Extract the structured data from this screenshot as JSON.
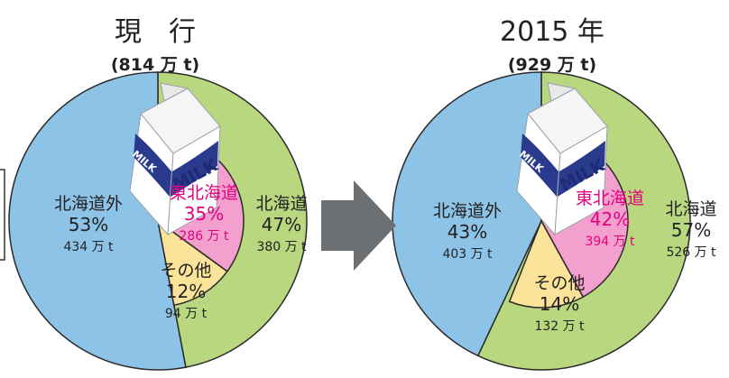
{
  "chart_data": [
    {
      "type": "pie",
      "title": "現　行",
      "total": "(814 万 t)",
      "colors": {
        "outer_inside": "#8ec3e8",
        "outer_hokkaido": "#b9d77f",
        "inner_tohoku": "#f3a0cf",
        "inner_other": "#fbe39a"
      },
      "outer": [
        {
          "name": "北海道外",
          "percent": 53,
          "amount": 434,
          "pct_label": "53%",
          "amt_label": "434 万 t"
        },
        {
          "name": "北海道",
          "percent": 47,
          "amount": 380,
          "pct_label": "47%",
          "amt_label": "380 万 t"
        }
      ],
      "inner": [
        {
          "name": "東北海道",
          "percent": 35,
          "amount": 286,
          "pct_label": "35%",
          "amt_label": "286 万 t"
        },
        {
          "name": "その他",
          "percent": 12,
          "amount": 94,
          "pct_label": "12%",
          "amt_label": "94 万 t"
        }
      ]
    },
    {
      "type": "pie",
      "title": "2015 年",
      "total": "(929 万 t)",
      "colors": {
        "outer_inside": "#8ec3e8",
        "outer_hokkaido": "#b9d77f",
        "inner_tohoku": "#f3a0cf",
        "inner_other": "#fbe39a"
      },
      "outer": [
        {
          "name": "北海道外",
          "percent": 43,
          "amount": 403,
          "pct_label": "43%",
          "amt_label": "403 万 t"
        },
        {
          "name": "北海道",
          "percent": 57,
          "amount": 526,
          "pct_label": "57%",
          "amt_label": "526 万 t"
        }
      ],
      "inner": [
        {
          "name": "東北海道",
          "percent": 42,
          "amount": 394,
          "pct_label": "42%",
          "amt_label": "394 万 t"
        },
        {
          "name": "その他",
          "percent": 14,
          "amount": 132,
          "pct_label": "14%",
          "amt_label": "132 万 t"
        }
      ]
    }
  ],
  "milk_carton": {
    "label": "MILK",
    "icon": "milk-carton-icon"
  },
  "arrow": {
    "icon": "right-arrow-icon",
    "color": "#6d7072"
  }
}
